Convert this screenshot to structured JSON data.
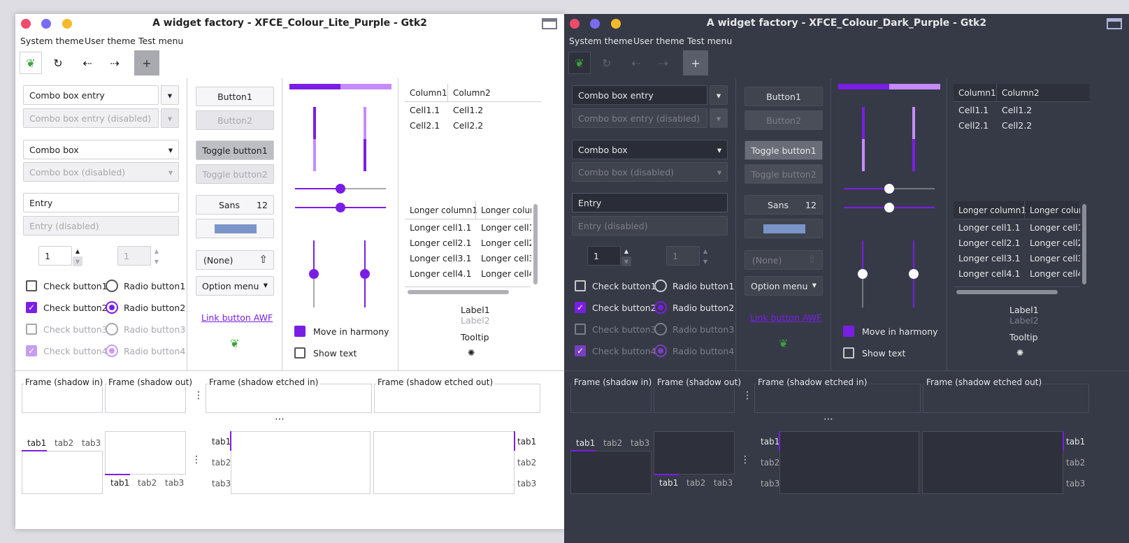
{
  "colors": {
    "accent": "#7a1ee6",
    "light_bg": "#ffffff",
    "dark_bg": "#363a47",
    "dark_field": "#2a2d37",
    "light_border": "#cfcfd6",
    "close": "#f04a6a",
    "minimize": "#7a6cf0",
    "maximize": "#f5b92a",
    "spin_progress": "#7b95c8"
  },
  "left": {
    "title": "A widget factory - XFCE_Colour_Lite_Purple - Gtk2",
    "menu": [
      "System theme",
      "User theme",
      "Test menu"
    ]
  },
  "right": {
    "title": "A widget factory - XFCE_Colour_Dark_Purple - Gtk2",
    "menu": [
      "System theme",
      "User theme",
      "Test menu"
    ]
  },
  "toolbar_icons": [
    "logo-icon",
    "refresh-icon",
    "back-icon",
    "forward-icon",
    "add-icon"
  ],
  "combo": {
    "entry": "Combo box entry",
    "entry_disabled": "Combo box entry (disabled)",
    "box": "Combo box",
    "box_disabled": "Combo box (disabled)"
  },
  "entry": {
    "value": "Entry",
    "disabled": "Entry (disabled)"
  },
  "spin": {
    "value1": "1",
    "value2": "1"
  },
  "checks": [
    "Check button1",
    "Check button2",
    "Check button3",
    "Check button4"
  ],
  "radios": [
    "Radio button1",
    "Radio button2",
    "Radio button3",
    "Radio button4"
  ],
  "buttons": {
    "b1": "Button1",
    "b2": "Button2",
    "t1": "Toggle button1",
    "t2": "Toggle button2",
    "font_name": "Sans",
    "font_size": "12",
    "file": "(None)",
    "option": "Option menu",
    "link": "Link button AWF"
  },
  "harmony": {
    "move": "Move in harmony",
    "show": "Show text"
  },
  "tree1": {
    "headers": [
      "Column1",
      "Column2"
    ],
    "rows": [
      [
        "Cell1.1",
        "Cell1.2"
      ],
      [
        "Cell2.1",
        "Cell2.2"
      ]
    ]
  },
  "tree2": {
    "headers": [
      "Longer column1",
      "Longer colur"
    ],
    "rows": [
      [
        "Longer cell1.1",
        "Longer cell1."
      ],
      [
        "Longer cell2.1",
        "Longer cell2"
      ],
      [
        "Longer cell3.1",
        "Longer cell3"
      ],
      [
        "Longer cell4.1",
        "Longer cell4"
      ]
    ]
  },
  "labels": {
    "l1": "Label1",
    "l2": "Label2",
    "tooltip": "Tooltip"
  },
  "frames": [
    "Frame (shadow in)",
    "Frame (shadow out)",
    "Frame (shadow etched in)",
    "Frame (shadow etched out)"
  ],
  "tabs": [
    "tab1",
    "tab2",
    "tab3"
  ]
}
